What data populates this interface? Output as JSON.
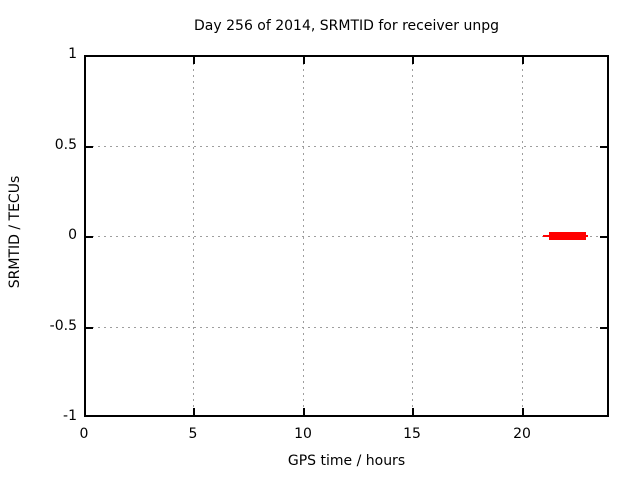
{
  "chart_data": {
    "type": "line",
    "title": "Day 256 of 2014, SRMTID for receiver unpg",
    "xlabel": "GPS time / hours",
    "ylabel": "SRMTID / TECUs",
    "xlim": [
      0,
      24
    ],
    "ylim": [
      -1,
      1
    ],
    "xticks": [
      0,
      5,
      10,
      15,
      20
    ],
    "yticks": [
      -1,
      -0.5,
      0,
      0.5,
      1
    ],
    "grid": true,
    "legend_position": "none",
    "background_color": "#ffffff",
    "grid_color": "#9e9e9e",
    "border_color": "#000000",
    "series": [
      {
        "name": "SRMTID",
        "color": "#ff0000",
        "description": "constant value 0 TECUs from approx 21.2 to 23.0 GPS hours",
        "segments": [
          {
            "x1": 21.0,
            "x2": 23.05,
            "y": 0,
            "thickness_px": 2
          },
          {
            "x1": 21.25,
            "x2": 22.95,
            "y": 0,
            "thickness_px": 8
          }
        ]
      }
    ]
  }
}
